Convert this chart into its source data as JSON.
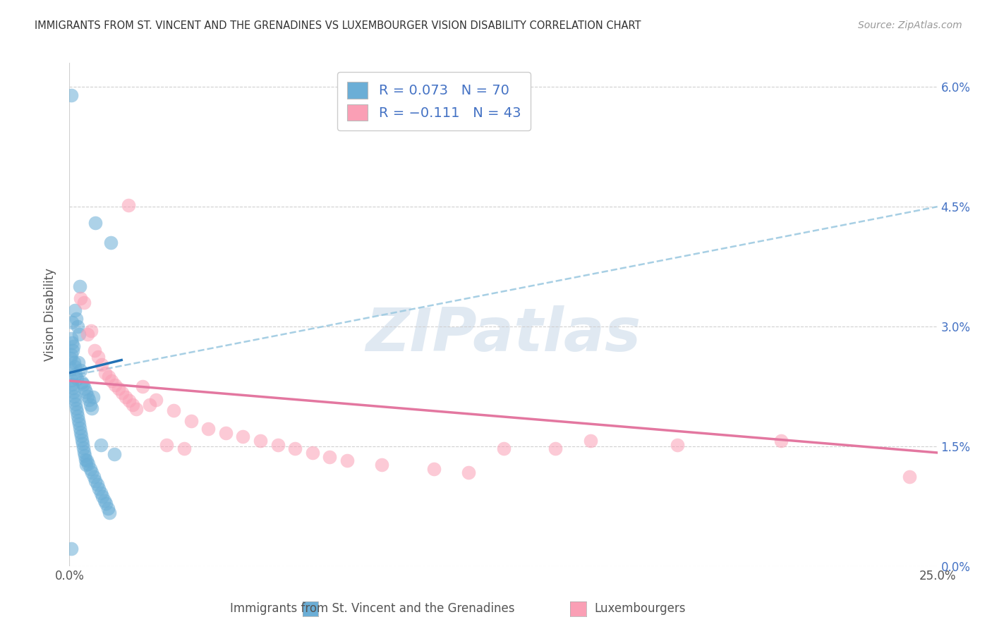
{
  "title": "IMMIGRANTS FROM ST. VINCENT AND THE GRENADINES VS LUXEMBOURGER VISION DISABILITY CORRELATION CHART",
  "source": "Source: ZipAtlas.com",
  "ylabel": "Vision Disability",
  "xlim": [
    0.0,
    25.0
  ],
  "ylim": [
    0.0,
    6.3
  ],
  "blue_color": "#6baed6",
  "pink_color": "#fa9fb5",
  "blue_line_color": "#2171b5",
  "pink_line_color": "#e377a0",
  "blue_dashed_color": "#9ecae1",
  "legend_label_blue": "R = 0.073   N = 70",
  "legend_label_pink": "R = −0.111   N = 43",
  "bottom_label_blue": "Immigrants from St. Vincent and the Grenadines",
  "bottom_label_pink": "Luxembourgers",
  "watermark": "ZIPatlas",
  "ylabel_right_vals": [
    0.0,
    1.5,
    3.0,
    4.5,
    6.0
  ],
  "grid_y_vals": [
    0.0,
    1.5,
    3.0,
    4.5,
    6.0
  ],
  "background_color": "#ffffff",
  "blue_x": [
    0.05,
    0.75,
    1.2,
    0.3,
    0.15,
    0.08,
    0.06,
    0.03,
    0.05,
    0.09,
    0.13,
    0.17,
    0.21,
    0.25,
    0.08,
    0.12,
    0.16,
    0.2,
    0.24,
    0.28,
    0.32,
    0.36,
    0.4,
    0.44,
    0.48,
    0.52,
    0.56,
    0.6,
    0.64,
    0.68,
    0.04,
    0.06,
    0.08,
    0.1,
    0.12,
    0.14,
    0.16,
    0.18,
    0.2,
    0.22,
    0.24,
    0.26,
    0.28,
    0.3,
    0.32,
    0.34,
    0.36,
    0.38,
    0.4,
    0.42,
    0.44,
    0.46,
    0.48,
    0.5,
    0.55,
    0.6,
    0.65,
    0.7,
    0.75,
    0.8,
    0.85,
    0.9,
    0.95,
    1.0,
    1.05,
    1.1,
    1.15,
    1.3,
    0.05,
    0.9
  ],
  "blue_y": [
    5.9,
    4.3,
    4.05,
    3.5,
    3.2,
    2.8,
    2.85,
    2.6,
    2.65,
    2.7,
    2.55,
    2.4,
    2.35,
    2.55,
    3.05,
    2.75,
    2.5,
    3.1,
    3.0,
    2.9,
    2.45,
    2.3,
    2.28,
    2.22,
    2.18,
    2.13,
    2.08,
    2.02,
    1.98,
    2.12,
    2.48,
    2.33,
    2.28,
    2.23,
    2.18,
    2.13,
    2.08,
    2.03,
    1.98,
    1.93,
    1.88,
    1.83,
    1.78,
    1.73,
    1.68,
    1.63,
    1.58,
    1.53,
    1.48,
    1.43,
    1.38,
    1.33,
    1.27,
    1.32,
    1.28,
    1.22,
    1.17,
    1.12,
    1.07,
    1.02,
    0.97,
    0.92,
    0.87,
    0.82,
    0.78,
    0.72,
    0.67,
    1.4,
    0.22,
    1.52
  ],
  "pink_x": [
    0.32,
    0.42,
    0.52,
    0.62,
    0.72,
    0.82,
    0.92,
    1.02,
    1.12,
    1.22,
    1.32,
    1.42,
    1.52,
    1.62,
    1.72,
    1.82,
    1.92,
    2.5,
    3.0,
    3.5,
    4.0,
    4.5,
    5.0,
    5.5,
    6.0,
    6.5,
    7.0,
    7.5,
    8.0,
    9.0,
    10.5,
    11.5,
    12.5,
    14.0,
    15.0,
    17.5,
    20.5,
    24.2,
    3.3,
    2.8,
    2.3,
    2.1,
    1.7
  ],
  "pink_y": [
    3.35,
    3.3,
    2.9,
    2.95,
    2.7,
    2.62,
    2.52,
    2.42,
    2.37,
    2.32,
    2.27,
    2.22,
    2.17,
    2.12,
    2.07,
    2.02,
    1.97,
    2.08,
    1.95,
    1.82,
    1.72,
    1.67,
    1.62,
    1.57,
    1.52,
    1.47,
    1.42,
    1.37,
    1.32,
    1.27,
    1.22,
    1.17,
    1.47,
    1.47,
    1.57,
    1.52,
    1.57,
    1.12,
    1.47,
    1.52,
    2.02,
    2.25,
    4.52
  ],
  "blue_line_x_end": 1.5,
  "blue_line_y_start": 2.42,
  "blue_line_y_end": 2.58,
  "blue_dashed_y_start": 2.38,
  "blue_dashed_y_end": 4.5,
  "pink_line_y_start": 2.32,
  "pink_line_y_end": 1.42
}
